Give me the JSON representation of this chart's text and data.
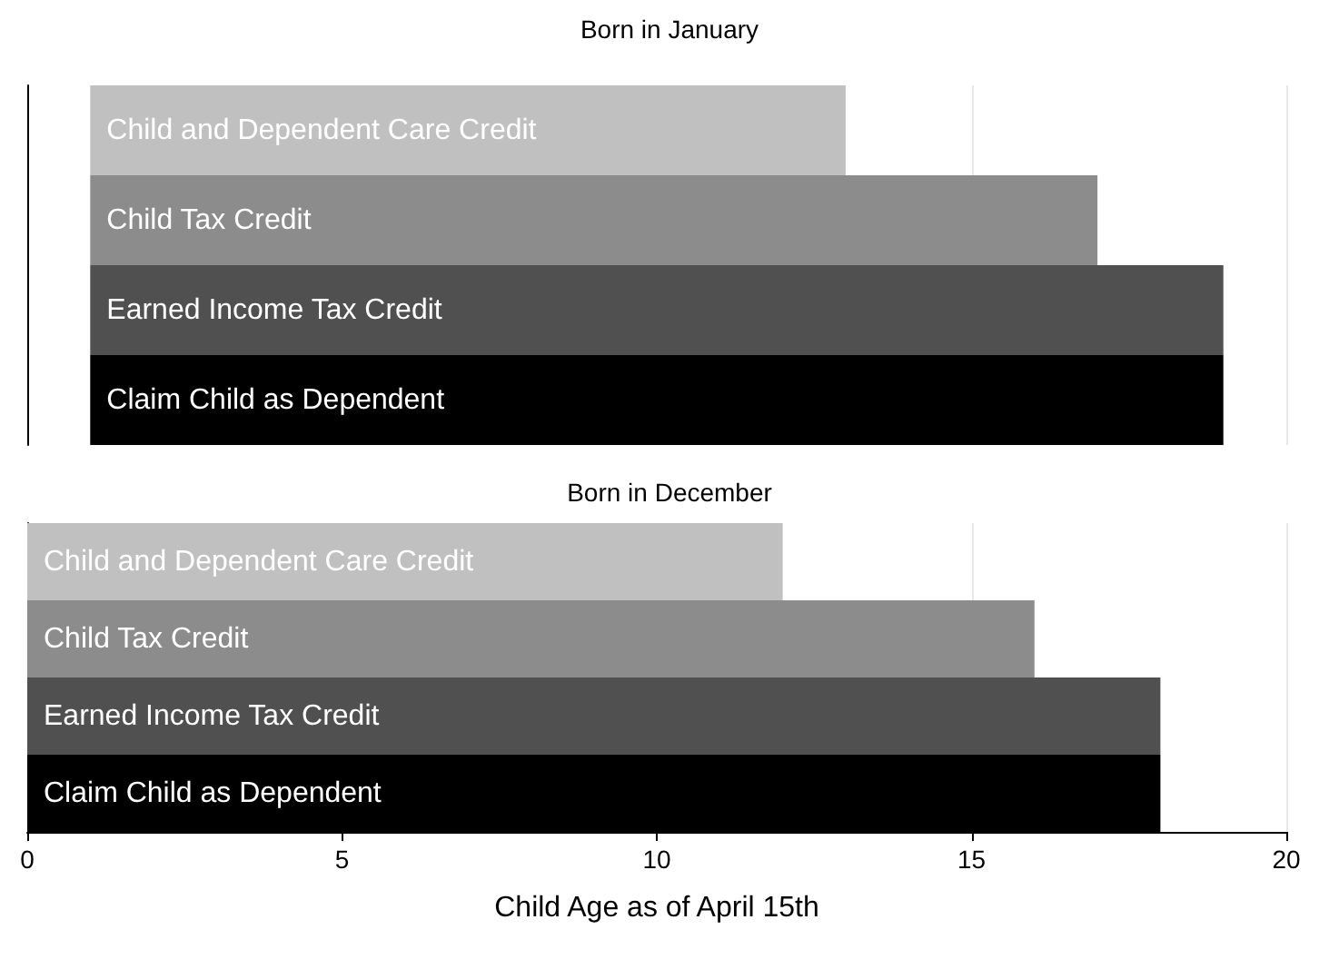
{
  "chart_data": [
    {
      "type": "bar",
      "orientation": "horizontal",
      "title": "Born in January",
      "categories": [
        "Child and Dependent Care Credit",
        "Child Tax Credit",
        "Earned Income Tax Credit",
        "Claim Child as Dependent"
      ],
      "values": [
        12,
        16,
        18,
        18
      ],
      "base": [
        1,
        1,
        1,
        1
      ],
      "colors": [
        "#c0c0c0",
        "#8c8c8c",
        "#505050",
        "#000000"
      ],
      "xlim": [
        0,
        20
      ],
      "xticks": [
        0,
        5,
        10,
        15,
        20
      ],
      "grid": "x",
      "tick_labels": false
    },
    {
      "type": "bar",
      "orientation": "horizontal",
      "title": "Born in December",
      "xlabel": "Child Age as of April 15th",
      "categories": [
        "Child and Dependent Care Credit",
        "Child Tax Credit",
        "Earned Income Tax Credit",
        "Claim Child as Dependent"
      ],
      "values": [
        12,
        16,
        18,
        18
      ],
      "base": [
        0,
        0,
        0,
        0
      ],
      "colors": [
        "#c0c0c0",
        "#8c8c8c",
        "#505050",
        "#000000"
      ],
      "xlim": [
        0,
        20
      ],
      "xticks": [
        0,
        5,
        10,
        15,
        20
      ],
      "grid": "x",
      "tick_labels": "x"
    }
  ]
}
